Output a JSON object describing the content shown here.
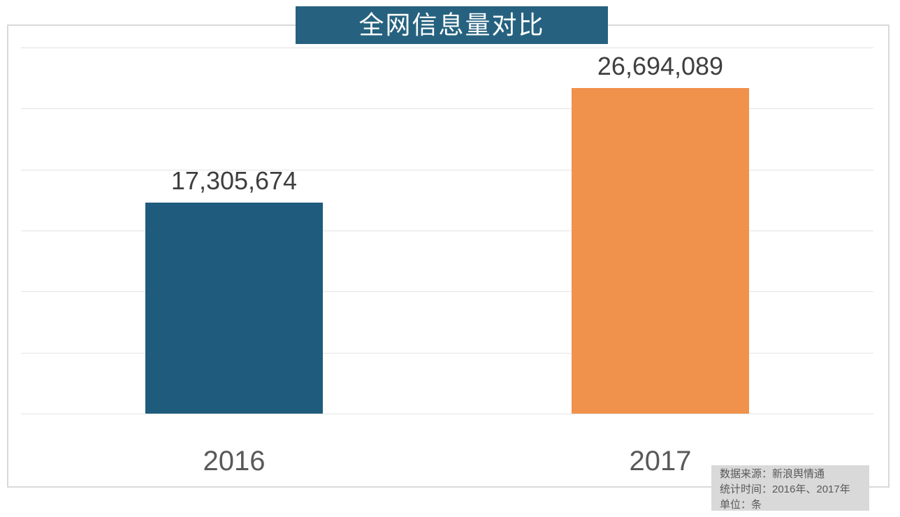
{
  "chart_data": {
    "type": "bar",
    "title": "全网信息量对比",
    "categories": [
      "2016",
      "2017"
    ],
    "values": [
      17305674,
      26694089
    ],
    "value_labels": [
      "17,305,674",
      "26,694,089"
    ],
    "bar_colors": [
      "#1e5b7c",
      "#f0914c"
    ],
    "xlabel": "",
    "ylabel": "",
    "ylim": [
      0,
      30000000
    ],
    "gridline_step": 5000000,
    "grid": true,
    "legend_position": "none"
  },
  "footnote": {
    "lines": [
      "数据来源：新浪舆情通",
      "统计时间：2016年、2017年",
      "单位：条"
    ]
  },
  "colors": {
    "title_background": "#26627f",
    "title_text": "#ffffff",
    "bar_2016": "#1e5b7c",
    "bar_2017": "#f0914c",
    "gridline": "#e3e3e3",
    "frame_border": "#d9d9d9",
    "value_label_text": "#3f3f3f",
    "axis_label_text": "#595959",
    "footnote_background": "#d9d9d9",
    "footnote_text": "#595959"
  }
}
